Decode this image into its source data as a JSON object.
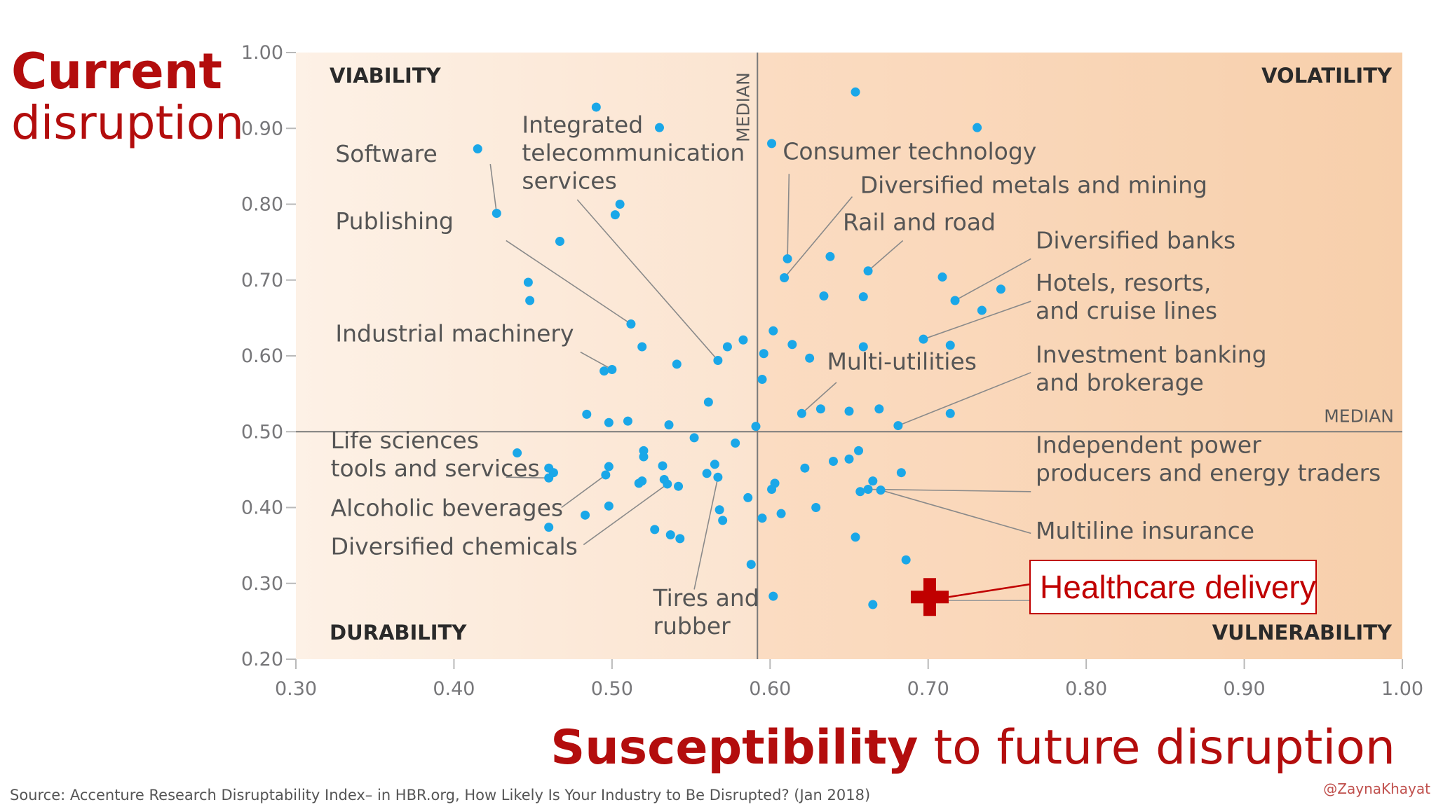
{
  "chart_data": {
    "type": "scatter",
    "xlim": [
      0.3,
      1.0
    ],
    "ylim": [
      0.2,
      1.0
    ],
    "x_ticks": [
      "0.30",
      "0.40",
      "0.50",
      "0.60",
      "0.70",
      "0.80",
      "0.90",
      "1.00"
    ],
    "y_ticks": [
      "0.20",
      "0.30",
      "0.40",
      "0.50",
      "0.60",
      "0.70",
      "0.80",
      "0.90",
      "1.00"
    ],
    "median_x": 0.592,
    "median_y": 0.5,
    "median_label": "MEDIAN",
    "grid": false,
    "title_lines": [
      {
        "bold": "Current",
        "rest": ""
      },
      {
        "bold": "",
        "rest": "disruption"
      }
    ],
    "xlabel": {
      "bold": "Susceptibility",
      "rest": "to future disruption"
    },
    "quadrants": {
      "top_left": "VIABILITY",
      "top_right": "VOLATILITY",
      "bottom_left": "DURABILITY",
      "bottom_right": "VULNERABILITY"
    },
    "colors": {
      "point": "#1aa7e8",
      "highlight": "#c00000",
      "title": "#b30d0d",
      "bg_left": "#fbe6d4",
      "bg_right": "#f8d3b3"
    },
    "points": [
      [
        0.415,
        0.873
      ],
      [
        0.427,
        0.788
      ],
      [
        0.447,
        0.697
      ],
      [
        0.448,
        0.673
      ],
      [
        0.467,
        0.751
      ],
      [
        0.49,
        0.928
      ],
      [
        0.53,
        0.901
      ],
      [
        0.502,
        0.786
      ],
      [
        0.505,
        0.8
      ],
      [
        0.512,
        0.642
      ],
      [
        0.519,
        0.612
      ],
      [
        0.495,
        0.58
      ],
      [
        0.5,
        0.582
      ],
      [
        0.541,
        0.589
      ],
      [
        0.561,
        0.539
      ],
      [
        0.567,
        0.594
      ],
      [
        0.573,
        0.612
      ],
      [
        0.583,
        0.621
      ],
      [
        0.484,
        0.523
      ],
      [
        0.498,
        0.512
      ],
      [
        0.51,
        0.514
      ],
      [
        0.536,
        0.509
      ],
      [
        0.552,
        0.492
      ],
      [
        0.578,
        0.485
      ],
      [
        0.591,
        0.507
      ],
      [
        0.44,
        0.472
      ],
      [
        0.46,
        0.439
      ],
      [
        0.463,
        0.446
      ],
      [
        0.46,
        0.452
      ],
      [
        0.496,
        0.443
      ],
      [
        0.498,
        0.454
      ],
      [
        0.52,
        0.475
      ],
      [
        0.52,
        0.467
      ],
      [
        0.519,
        0.435
      ],
      [
        0.517,
        0.432
      ],
      [
        0.532,
        0.455
      ],
      [
        0.533,
        0.437
      ],
      [
        0.535,
        0.431
      ],
      [
        0.542,
        0.428
      ],
      [
        0.56,
        0.445
      ],
      [
        0.565,
        0.457
      ],
      [
        0.567,
        0.44
      ],
      [
        0.568,
        0.397
      ],
      [
        0.57,
        0.383
      ],
      [
        0.498,
        0.402
      ],
      [
        0.483,
        0.39
      ],
      [
        0.46,
        0.374
      ],
      [
        0.527,
        0.371
      ],
      [
        0.537,
        0.364
      ],
      [
        0.543,
        0.359
      ],
      [
        0.586,
        0.413
      ],
      [
        0.595,
        0.386
      ],
      [
        0.588,
        0.325
      ],
      [
        0.602,
        0.283
      ],
      [
        0.601,
        0.424
      ],
      [
        0.603,
        0.432
      ],
      [
        0.607,
        0.392
      ],
      [
        0.601,
        0.88
      ],
      [
        0.609,
        0.703
      ],
      [
        0.611,
        0.728
      ],
      [
        0.602,
        0.633
      ],
      [
        0.596,
        0.603
      ],
      [
        0.614,
        0.615
      ],
      [
        0.595,
        0.569
      ],
      [
        0.625,
        0.597
      ],
      [
        0.62,
        0.524
      ],
      [
        0.632,
        0.53
      ],
      [
        0.634,
        0.679
      ],
      [
        0.638,
        0.731
      ],
      [
        0.65,
        0.527
      ],
      [
        0.654,
        0.948
      ],
      [
        0.659,
        0.612
      ],
      [
        0.659,
        0.678
      ],
      [
        0.662,
        0.712
      ],
      [
        0.669,
        0.53
      ],
      [
        0.681,
        0.508
      ],
      [
        0.697,
        0.622
      ],
      [
        0.709,
        0.704
      ],
      [
        0.717,
        0.673
      ],
      [
        0.714,
        0.614
      ],
      [
        0.714,
        0.524
      ],
      [
        0.731,
        0.901
      ],
      [
        0.734,
        0.66
      ],
      [
        0.746,
        0.688
      ],
      [
        0.622,
        0.452
      ],
      [
        0.629,
        0.4
      ],
      [
        0.64,
        0.461
      ],
      [
        0.65,
        0.464
      ],
      [
        0.656,
        0.475
      ],
      [
        0.657,
        0.421
      ],
      [
        0.662,
        0.424
      ],
      [
        0.665,
        0.435
      ],
      [
        0.67,
        0.423
      ],
      [
        0.683,
        0.446
      ],
      [
        0.654,
        0.361
      ],
      [
        0.686,
        0.331
      ],
      [
        0.665,
        0.272
      ]
    ],
    "labels": [
      {
        "lines": [
          "Software"
        ],
        "lx": 0.325,
        "ly": 0.856,
        "anchor": "start",
        "pt": [
          0.427,
          0.788
        ],
        "from": [
          0.423,
          0.853
        ]
      },
      {
        "lines": [
          "Integrated",
          "telecommunication",
          "services"
        ],
        "lx": 0.443,
        "ly": 0.894,
        "anchor": "start",
        "pt": [
          0.567,
          0.594
        ],
        "from": [
          0.478,
          0.806
        ]
      },
      {
        "lines": [
          "Publishing"
        ],
        "lx": 0.325,
        "ly": 0.767,
        "anchor": "start",
        "pt": [
          0.512,
          0.642
        ],
        "from": [
          0.433,
          0.752
        ]
      },
      {
        "lines": [
          "Industrial machinery"
        ],
        "lx": 0.325,
        "ly": 0.619,
        "anchor": "start",
        "pt": [
          0.5,
          0.582
        ],
        "from": [
          0.48,
          0.605
        ]
      },
      {
        "lines": [
          "Consumer technology"
        ],
        "lx": 0.608,
        "ly": 0.859,
        "anchor": "start",
        "pt": [
          0.611,
          0.728
        ],
        "from": [
          0.612,
          0.84
        ]
      },
      {
        "lines": [
          "Diversified metals and mining"
        ],
        "lx": 0.657,
        "ly": 0.815,
        "anchor": "start",
        "pt": [
          0.609,
          0.703
        ],
        "from": [
          0.652,
          0.81
        ]
      },
      {
        "lines": [
          "Rail and road"
        ],
        "lx": 0.646,
        "ly": 0.766,
        "anchor": "start",
        "pt": [
          0.662,
          0.712
        ],
        "from": [
          0.684,
          0.752
        ]
      },
      {
        "lines": [
          "Diversified banks"
        ],
        "lx": 0.768,
        "ly": 0.742,
        "anchor": "start",
        "pt": [
          0.717,
          0.673
        ],
        "from": [
          0.765,
          0.728
        ]
      },
      {
        "lines": [
          "Hotels, resorts,",
          "and cruise lines"
        ],
        "lx": 0.768,
        "ly": 0.686,
        "anchor": "start",
        "pt": [
          0.697,
          0.622
        ],
        "from": [
          0.765,
          0.672
        ]
      },
      {
        "lines": [
          "Multi-utilities"
        ],
        "lx": 0.636,
        "ly": 0.582,
        "anchor": "start",
        "pt": [
          0.62,
          0.524
        ],
        "from": [
          0.642,
          0.565
        ]
      },
      {
        "lines": [
          "Investment banking",
          "and brokerage"
        ],
        "lx": 0.768,
        "ly": 0.591,
        "anchor": "start",
        "pt": [
          0.681,
          0.508
        ],
        "from": [
          0.765,
          0.578
        ]
      },
      {
        "lines": [
          "Life sciences",
          "tools and services"
        ],
        "lx": 0.322,
        "ly": 0.478,
        "anchor": "start",
        "pt": [
          0.46,
          0.439
        ],
        "from": [
          0.433,
          0.44
        ]
      },
      {
        "lines": [
          "Alcoholic beverages"
        ],
        "lx": 0.322,
        "ly": 0.389,
        "anchor": "start",
        "pt": [
          0.496,
          0.443
        ],
        "from": [
          0.468,
          0.4
        ]
      },
      {
        "lines": [
          "Diversified chemicals"
        ],
        "lx": 0.322,
        "ly": 0.338,
        "anchor": "start",
        "pt": [
          0.535,
          0.431
        ],
        "from": [
          0.482,
          0.351
        ]
      },
      {
        "lines": [
          "Tires and",
          "rubber"
        ],
        "lx": 0.526,
        "ly": 0.27,
        "anchor": "start",
        "pt": [
          0.567,
          0.44
        ],
        "from": [
          0.552,
          0.292
        ]
      },
      {
        "lines": [
          "Independent power",
          "producers and energy traders"
        ],
        "lx": 0.768,
        "ly": 0.472,
        "anchor": "start",
        "pt": [
          0.662,
          0.424
        ],
        "from": [
          0.765,
          0.421
        ]
      },
      {
        "lines": [
          "Multiline insurance"
        ],
        "lx": 0.768,
        "ly": 0.359,
        "anchor": "start",
        "pt": [
          0.67,
          0.423
        ],
        "from": [
          0.765,
          0.366
        ]
      }
    ],
    "highlight": {
      "label": "Healthcare delivery",
      "point": [
        0.701,
        0.282
      ]
    }
  },
  "source": "Source: Accenture Research Disruptability Index– in HBR.org, How Likely Is Your Industry to Be Disrupted? (Jan 2018)",
  "credit": "@ZaynaKhayat"
}
